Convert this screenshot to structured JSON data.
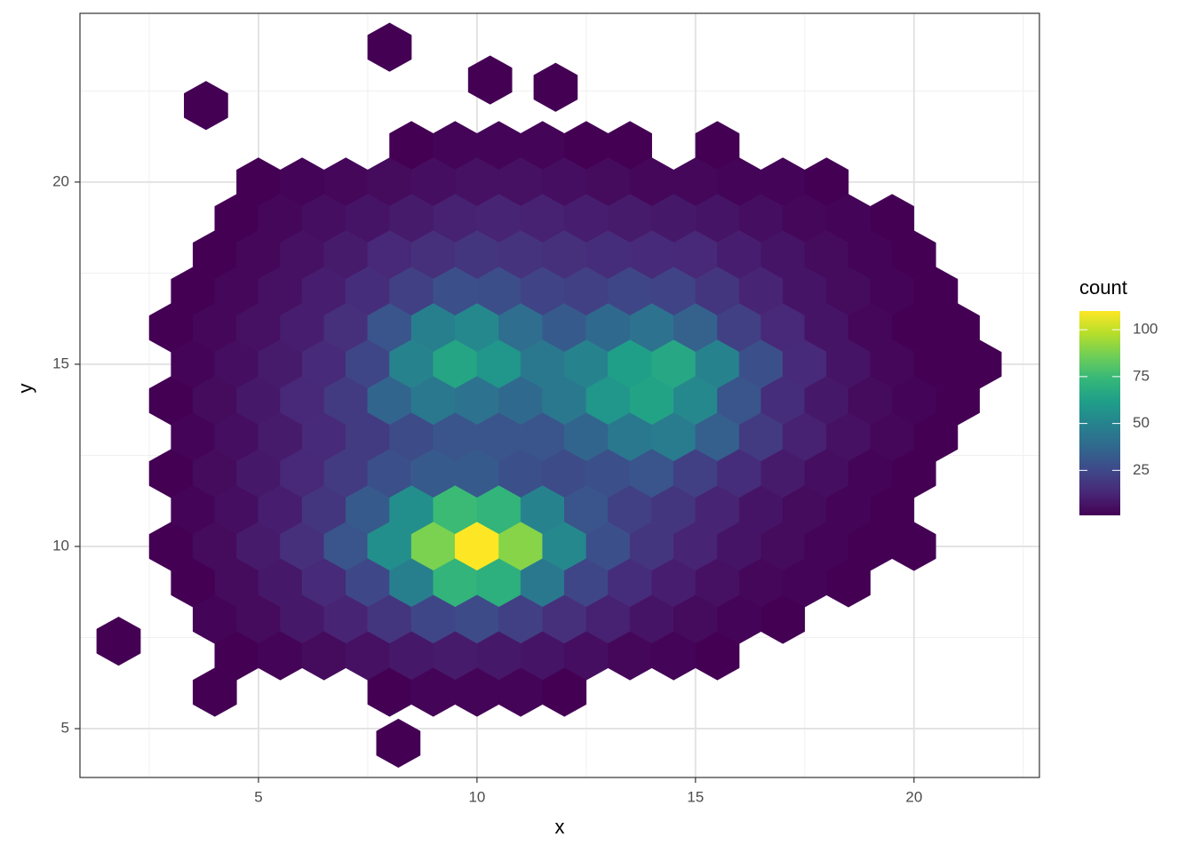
{
  "chart_data": {
    "type": "hexbin",
    "x_label": "x",
    "y_label": "y",
    "legend_title": "count",
    "xlim": [
      0.915,
      22.87
    ],
    "ylim": [
      3.66,
      24.63
    ],
    "xticks": [
      5,
      10,
      15,
      20
    ],
    "yticks": [
      5,
      10,
      15,
      20
    ],
    "x_minor_grid": [
      2.5,
      7.5,
      12.5,
      17.5,
      22.5
    ],
    "y_minor_grid": [
      7.5,
      12.5,
      17.5,
      22.5
    ],
    "grid": true,
    "colormap": [
      "#440154",
      "#482878",
      "#3e4989",
      "#31688e",
      "#26828e",
      "#1f9e89",
      "#35b779",
      "#6ece58",
      "#b5de2b",
      "#fde725"
    ],
    "clim": [
      1,
      110
    ],
    "legend_ticks": [
      25,
      50,
      75,
      100
    ],
    "rows": [
      {
        "y": 21,
        "x": [
          8.5,
          9.5,
          10.5,
          11.5,
          12.5,
          13.5,
          15.5
        ],
        "values": [
          1,
          2,
          2,
          2,
          1,
          1,
          1
        ]
      },
      {
        "y": 20,
        "x": [
          5,
          6,
          7,
          8,
          9,
          10,
          11,
          12,
          13,
          14,
          15,
          16,
          17,
          18
        ],
        "values": [
          1,
          2,
          3,
          4,
          5,
          6,
          6,
          5,
          4,
          3,
          3,
          2,
          2,
          1
        ]
      },
      {
        "y": 19,
        "x": [
          4.5,
          5.5,
          6.5,
          7.5,
          8.5,
          9.5,
          10.5,
          11.5,
          12.5,
          13.5,
          14.5,
          15.5,
          16.5,
          17.5,
          18.5,
          19.5
        ],
        "values": [
          1,
          3,
          5,
          7,
          9,
          11,
          12,
          11,
          10,
          9,
          8,
          7,
          5,
          3,
          2,
          1
        ]
      },
      {
        "y": 18,
        "x": [
          4,
          5,
          6,
          7,
          8,
          9,
          10,
          11,
          12,
          13,
          14,
          15,
          16,
          17,
          18,
          19,
          20
        ],
        "values": [
          1,
          3,
          6,
          9,
          13,
          16,
          18,
          17,
          16,
          15,
          14,
          13,
          10,
          7,
          4,
          2,
          1
        ]
      },
      {
        "y": 17,
        "x": [
          3.5,
          4.5,
          5.5,
          6.5,
          7.5,
          8.5,
          9.5,
          10.5,
          11.5,
          12.5,
          13.5,
          14.5,
          15.5,
          16.5,
          17.5,
          18.5,
          19.5,
          20.5
        ],
        "values": [
          1,
          3,
          6,
          10,
          15,
          22,
          28,
          27,
          23,
          22,
          24,
          23,
          18,
          12,
          7,
          4,
          2,
          1
        ]
      },
      {
        "y": 16,
        "x": [
          3,
          4,
          5,
          6,
          7,
          8,
          9,
          10,
          11,
          12,
          13,
          14,
          15,
          16,
          17,
          18,
          19,
          20,
          21
        ],
        "values": [
          1,
          3,
          6,
          10,
          16,
          30,
          48,
          52,
          40,
          32,
          38,
          42,
          35,
          22,
          13,
          7,
          3,
          1,
          1
        ]
      },
      {
        "y": 15,
        "x": [
          3.5,
          4.5,
          5.5,
          6.5,
          7.5,
          8.5,
          9.5,
          10.5,
          11.5,
          12.5,
          13.5,
          14.5,
          15.5,
          16.5,
          17.5,
          18.5,
          19.5,
          20.5,
          21.5
        ],
        "values": [
          2,
          5,
          9,
          14,
          24,
          50,
          65,
          58,
          45,
          50,
          62,
          66,
          50,
          28,
          14,
          7,
          3,
          1,
          1
        ]
      },
      {
        "y": 14,
        "x": [
          3,
          4,
          5,
          6,
          7,
          8,
          9,
          10,
          11,
          12,
          13,
          14,
          15,
          16,
          17,
          18,
          19,
          20,
          21
        ],
        "values": [
          1,
          4,
          8,
          13,
          20,
          36,
          45,
          42,
          38,
          45,
          58,
          64,
          52,
          30,
          15,
          8,
          4,
          2,
          1
        ]
      },
      {
        "y": 13,
        "x": [
          3.5,
          4.5,
          5.5,
          6.5,
          7.5,
          8.5,
          9.5,
          10.5,
          11.5,
          12.5,
          13.5,
          14.5,
          15.5,
          16.5,
          17.5,
          18.5,
          19.5,
          20.5
        ],
        "values": [
          2,
          5,
          9,
          14,
          20,
          26,
          30,
          30,
          30,
          36,
          45,
          46,
          34,
          20,
          11,
          6,
          3,
          1
        ]
      },
      {
        "y": 12,
        "x": [
          3,
          4,
          5,
          6,
          7,
          8,
          9,
          10,
          11,
          12,
          13,
          14,
          15,
          16,
          17,
          18,
          19,
          20
        ],
        "values": [
          1,
          4,
          8,
          13,
          20,
          28,
          32,
          32,
          28,
          26,
          28,
          30,
          22,
          15,
          9,
          5,
          2,
          1
        ]
      },
      {
        "y": 11,
        "x": [
          3.5,
          4.5,
          5.5,
          6.5,
          7.5,
          8.5,
          9.5,
          10.5,
          11.5,
          12.5,
          13.5,
          14.5,
          15.5,
          16.5,
          17.5,
          18.5,
          19.5
        ],
        "values": [
          2,
          5,
          10,
          18,
          32,
          55,
          75,
          72,
          50,
          30,
          22,
          18,
          12,
          7,
          4,
          2,
          1
        ]
      },
      {
        "y": 10,
        "x": [
          3,
          4,
          5,
          6,
          7,
          8,
          9,
          10,
          11,
          12,
          13,
          14,
          15,
          16,
          17,
          18,
          19,
          20
        ],
        "values": [
          1,
          4,
          9,
          16,
          30,
          55,
          88,
          110,
          90,
          52,
          28,
          18,
          12,
          7,
          4,
          2,
          1,
          1
        ]
      },
      {
        "y": 9,
        "x": [
          3.5,
          4.5,
          5.5,
          6.5,
          7.5,
          8.5,
          9.5,
          10.5,
          11.5,
          12.5,
          13.5,
          14.5,
          15.5,
          16.5,
          17.5,
          18.5
        ],
        "values": [
          1,
          4,
          8,
          14,
          25,
          48,
          72,
          70,
          45,
          24,
          15,
          10,
          6,
          3,
          2,
          1
        ]
      },
      {
        "y": 8,
        "x": [
          4,
          5,
          6,
          7,
          8,
          9,
          10,
          11,
          12,
          13,
          14,
          15,
          16,
          17
        ],
        "values": [
          2,
          4,
          8,
          12,
          18,
          24,
          26,
          22,
          16,
          11,
          7,
          4,
          2,
          1
        ]
      },
      {
        "y": 7,
        "x": [
          4.5,
          5.5,
          6.5,
          7.5,
          8.5,
          9.5,
          10.5,
          11.5,
          12.5,
          13.5,
          14.5,
          15.5
        ],
        "values": [
          1,
          2,
          4,
          6,
          8,
          9,
          8,
          7,
          5,
          3,
          2,
          1
        ]
      },
      {
        "y": 6,
        "x": [
          4,
          8,
          9,
          10,
          11,
          12
        ],
        "values": [
          1,
          1,
          2,
          2,
          2,
          1
        ]
      },
      {
        "y": 7.4,
        "x": [
          1.8
        ],
        "values": [
          1
        ]
      },
      {
        "y": 23.7,
        "x": [
          8
        ],
        "values": [
          1
        ]
      },
      {
        "y": 22.8,
        "x": [
          10.3
        ],
        "values": [
          1
        ]
      },
      {
        "y": 22.6,
        "x": [
          11.8
        ],
        "values": [
          1
        ]
      },
      {
        "y": 22.1,
        "x": [
          3.8
        ],
        "values": [
          1
        ]
      },
      {
        "y": 4.6,
        "x": [
          8.2
        ],
        "values": [
          1
        ]
      }
    ]
  }
}
